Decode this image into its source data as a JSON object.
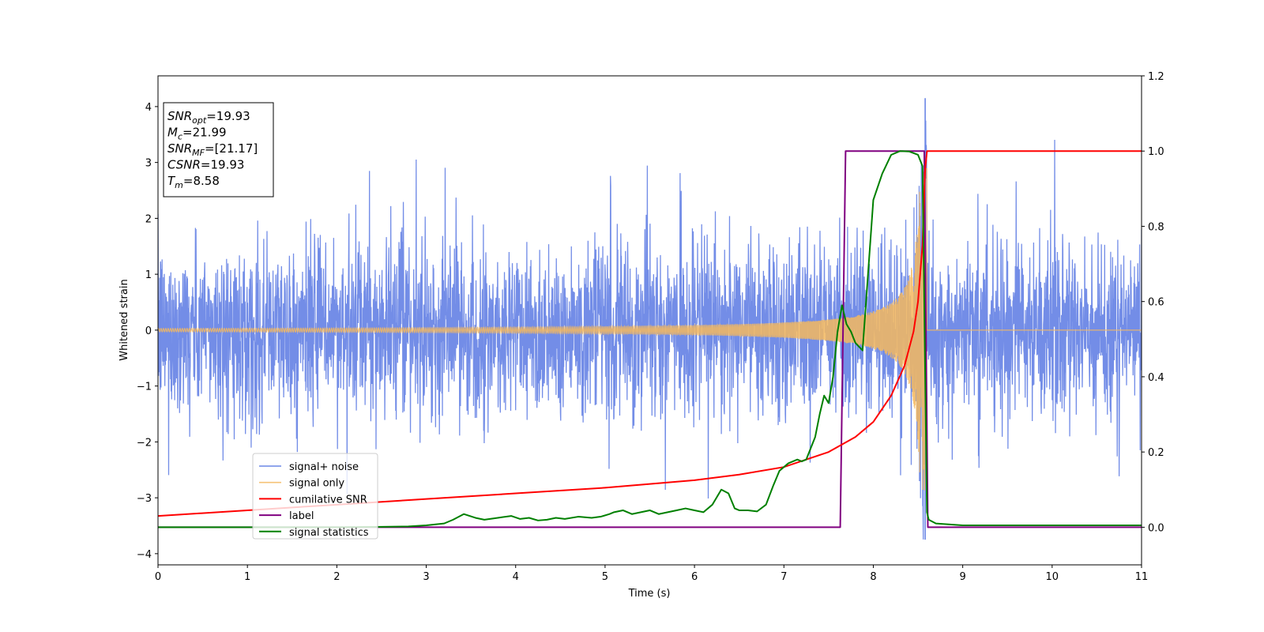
{
  "chart_data": {
    "type": "line",
    "xlabel": "Time (s)",
    "ylabel": "Whitened strain",
    "xlim": [
      0,
      11
    ],
    "ylim": [
      -4.2,
      4.55
    ],
    "y2lim": [
      -0.1,
      1.2
    ],
    "grid": false,
    "x_ticks": [
      0,
      1,
      2,
      3,
      4,
      5,
      6,
      7,
      8,
      9,
      10,
      11
    ],
    "y_ticks": [
      -4,
      -3,
      -2,
      -1,
      0,
      1,
      2,
      3,
      4
    ],
    "y2_ticks": [
      0.0,
      0.2,
      0.4,
      0.6,
      0.8,
      1.0,
      1.2
    ],
    "x_tick_labels": [
      "0",
      "1",
      "2",
      "3",
      "4",
      "5",
      "6",
      "7",
      "8",
      "9",
      "10",
      "11"
    ],
    "y_tick_labels": [
      "−4",
      "−3",
      "−2",
      "−1",
      "0",
      "1",
      "2",
      "3",
      "4"
    ],
    "y2_tick_labels": [
      "0.0",
      "0.2",
      "0.4",
      "0.6",
      "0.8",
      "1.0",
      "1.2"
    ],
    "legend_placement": "lower-left",
    "info_box": {
      "lines": [
        {
          "var": "SNR",
          "sub": "opt",
          "text": "=19.93"
        },
        {
          "var": "M",
          "sub": "c",
          "text": "=21.99"
        },
        {
          "var": "SNR",
          "sub": "MF",
          "text": "=[21.17]"
        },
        {
          "var": "CSNR",
          "sub": "",
          "text": "=19.93"
        },
        {
          "var": "T",
          "sub": "m",
          "text": "=8.58"
        }
      ]
    },
    "series": [
      {
        "name": "signal+ noise",
        "axis": "left",
        "color": "#6b87e6",
        "description_values": {
          "noise_std": 0.75,
          "x_start": 0,
          "x_end": 11,
          "spike_x": 8.58,
          "spike_max": 4.15,
          "spike_min": -3.75
        }
      },
      {
        "name": "signal only",
        "axis": "left",
        "color": "#f5b95e",
        "chirp": {
          "t_merge": 8.58,
          "amp_start": 0.03,
          "amp_peak": 2.9,
          "f_start": 40,
          "f_end": 200,
          "end_x": 8.6
        }
      },
      {
        "name": "cumilative SNR",
        "axis": "right",
        "color": "#ff0000",
        "x": [
          0,
          1,
          2,
          3,
          4,
          5,
          6,
          6.5,
          7,
          7.5,
          7.8,
          8.0,
          8.2,
          8.35,
          8.45,
          8.5,
          8.55,
          8.58,
          8.6,
          9,
          10,
          11
        ],
        "y": [
          0.03,
          0.045,
          0.06,
          0.075,
          0.09,
          0.105,
          0.125,
          0.14,
          0.16,
          0.2,
          0.24,
          0.28,
          0.35,
          0.43,
          0.52,
          0.6,
          0.75,
          0.95,
          1.0,
          1.0,
          1.0,
          1.0
        ]
      },
      {
        "name": "label",
        "axis": "right",
        "color": "#800080",
        "x": [
          0,
          7.63,
          7.69,
          8.57,
          8.61,
          11
        ],
        "y": [
          0.0,
          0.0,
          1.0,
          1.0,
          0.0,
          0.0
        ]
      },
      {
        "name": "signal statistics",
        "axis": "right",
        "color": "#008000",
        "x": [
          0,
          1,
          2,
          2.5,
          2.8,
          3.0,
          3.2,
          3.3,
          3.42,
          3.55,
          3.65,
          3.8,
          3.95,
          4.05,
          4.15,
          4.25,
          4.35,
          4.45,
          4.55,
          4.7,
          4.85,
          4.95,
          5.05,
          5.1,
          5.2,
          5.3,
          5.4,
          5.5,
          5.6,
          5.7,
          5.8,
          5.9,
          6.0,
          6.1,
          6.2,
          6.3,
          6.38,
          6.45,
          6.5,
          6.6,
          6.7,
          6.8,
          6.88,
          6.95,
          7.0,
          7.05,
          7.1,
          7.15,
          7.2,
          7.25,
          7.3,
          7.35,
          7.4,
          7.45,
          7.5,
          7.55,
          7.6,
          7.65,
          7.7,
          7.75,
          7.8,
          7.88,
          8.0,
          8.1,
          8.2,
          8.3,
          8.4,
          8.5,
          8.55,
          8.6,
          8.62,
          8.7,
          9,
          10,
          11
        ],
        "y": [
          0.0,
          0.0,
          0.0,
          0.001,
          0.002,
          0.005,
          0.01,
          0.02,
          0.035,
          0.025,
          0.02,
          0.025,
          0.03,
          0.022,
          0.025,
          0.018,
          0.02,
          0.025,
          0.022,
          0.028,
          0.025,
          0.028,
          0.035,
          0.04,
          0.045,
          0.035,
          0.04,
          0.045,
          0.035,
          0.04,
          0.045,
          0.05,
          0.045,
          0.04,
          0.06,
          0.1,
          0.09,
          0.05,
          0.045,
          0.045,
          0.042,
          0.06,
          0.11,
          0.15,
          0.16,
          0.17,
          0.175,
          0.18,
          0.175,
          0.18,
          0.21,
          0.24,
          0.3,
          0.35,
          0.33,
          0.4,
          0.52,
          0.59,
          0.54,
          0.52,
          0.49,
          0.47,
          0.87,
          0.94,
          0.99,
          1.0,
          0.999,
          0.99,
          0.96,
          0.04,
          0.02,
          0.01,
          0.005,
          0.005,
          0.005
        ]
      }
    ]
  }
}
